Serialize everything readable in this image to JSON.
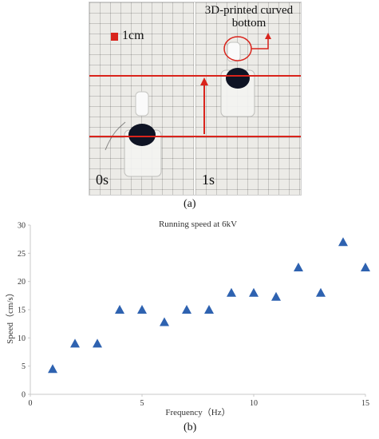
{
  "photo": {
    "scale_label": "1cm",
    "annotation": "3D-printed curved bottom",
    "time_left": "0s",
    "time_right": "1s",
    "marker_color": "#d9241c"
  },
  "panel_a_label": "(a)",
  "panel_b_label": "(b)",
  "chart_data": {
    "type": "scatter",
    "title": "Running speed at 6kV",
    "xlabel": "Frequency（Hz）",
    "ylabel": "Speed（cm/s）",
    "xlim": [
      0,
      15
    ],
    "ylim": [
      0,
      30
    ],
    "xticks": [
      0,
      5,
      10,
      15
    ],
    "yticks": [
      0,
      5,
      10,
      15,
      20,
      25,
      30
    ],
    "grid": false,
    "marker": "triangle",
    "marker_color": "#2e62b0",
    "x": [
      1,
      2,
      3,
      4,
      5,
      6,
      7,
      8,
      9,
      10,
      11,
      12,
      13,
      14,
      15
    ],
    "y": [
      4.5,
      9,
      9,
      15,
      15,
      12.8,
      15,
      15,
      18,
      18,
      17.3,
      22.5,
      18,
      27,
      22.5
    ]
  }
}
